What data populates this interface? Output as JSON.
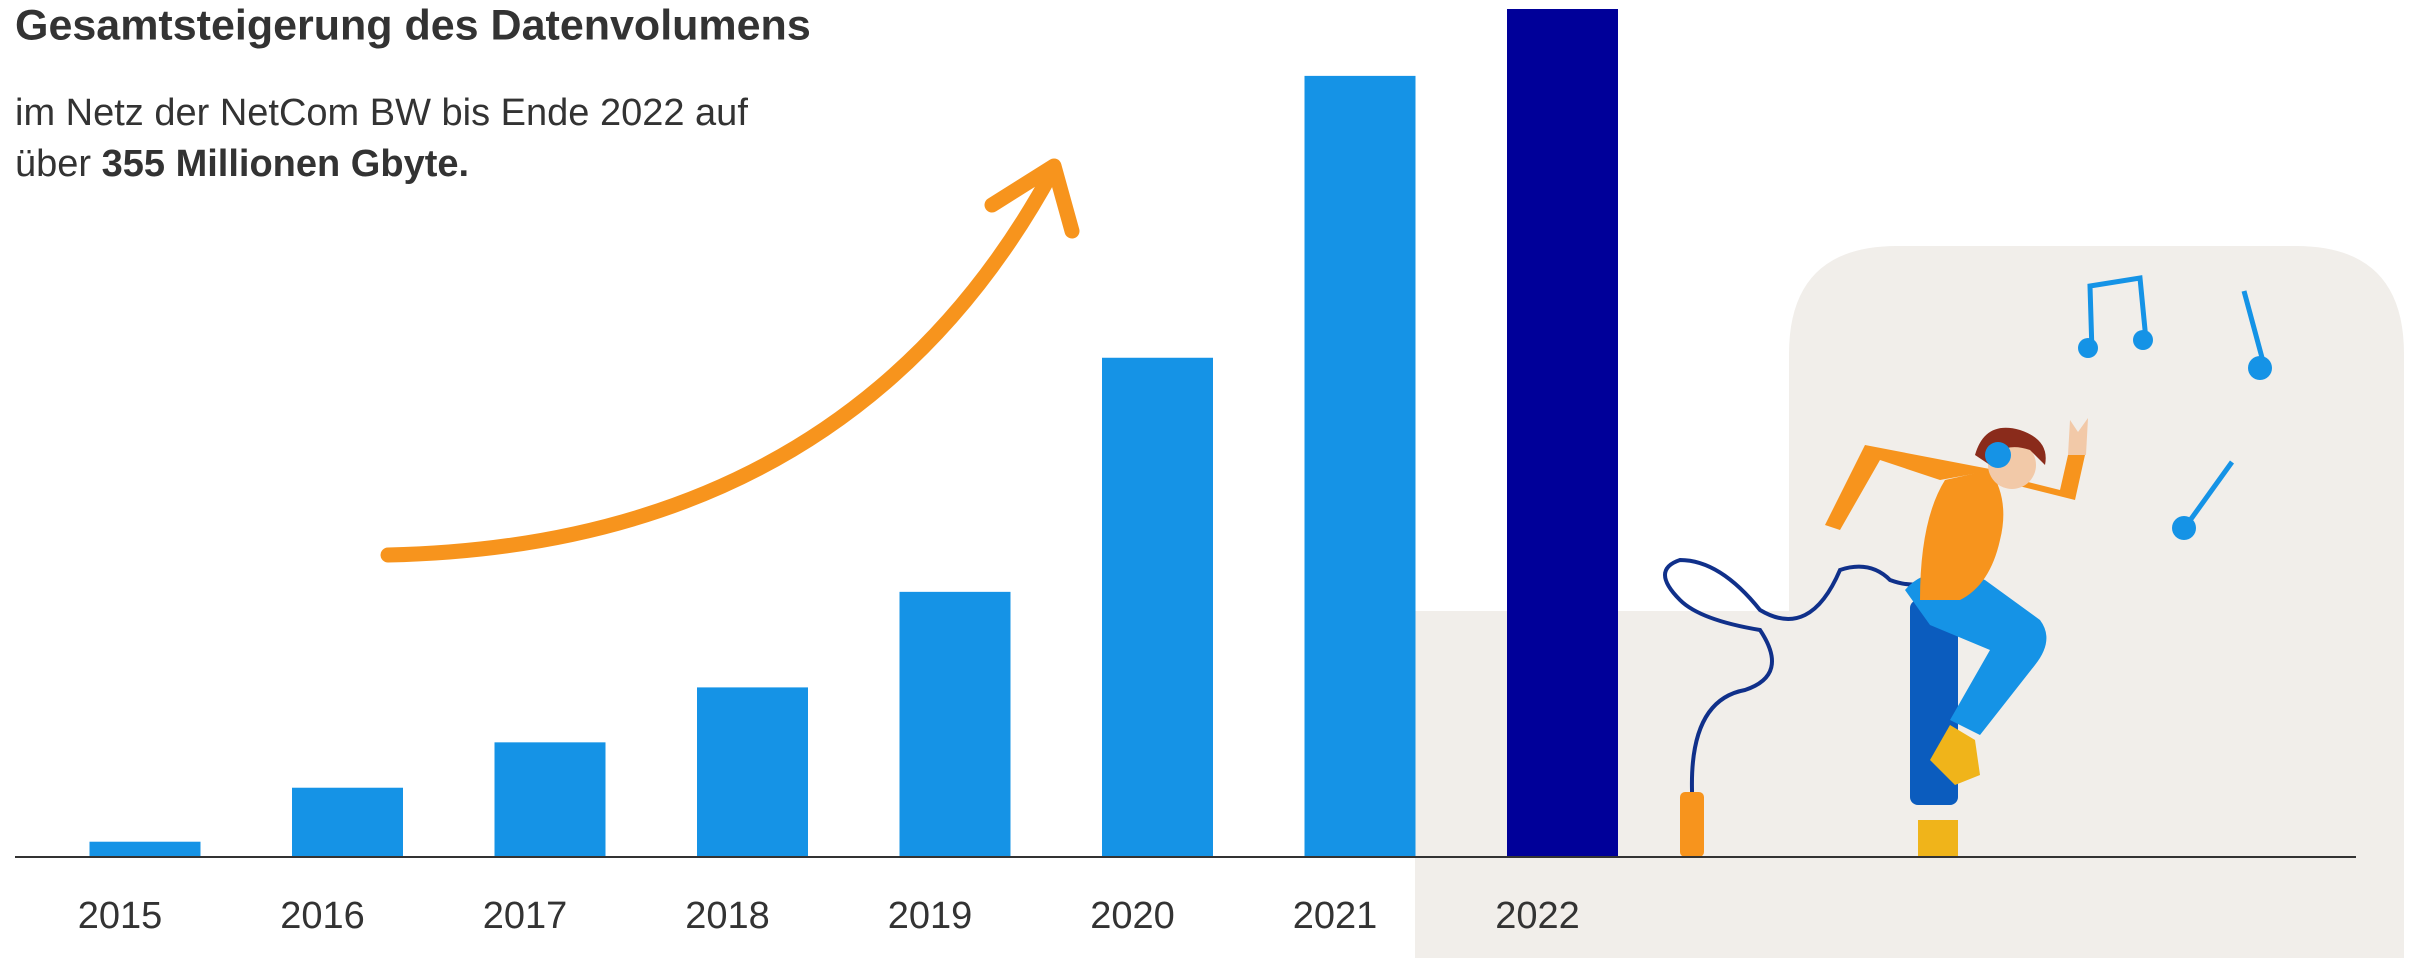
{
  "chart_data": {
    "type": "bar",
    "title": "Gesamtsteigerung des Datenvolumens",
    "subtitle": "im Netz der NetCom BW bis Ende 2022 auf",
    "subtitle_line2": "über",
    "subtitle_emphasis": "355 Millionen Gbyte.",
    "categories": [
      "2015",
      "2016",
      "2017",
      "2018",
      "2019",
      "2020",
      "2021",
      "2022"
    ],
    "values": [
      6.4,
      29,
      48,
      71,
      111,
      209,
      327,
      355
    ],
    "colors": [
      "#1593e6",
      "#1593e6",
      "#1593e6",
      "#1593e6",
      "#1593e6",
      "#1593e6",
      "#1593e6",
      "#000099"
    ]
  }
}
